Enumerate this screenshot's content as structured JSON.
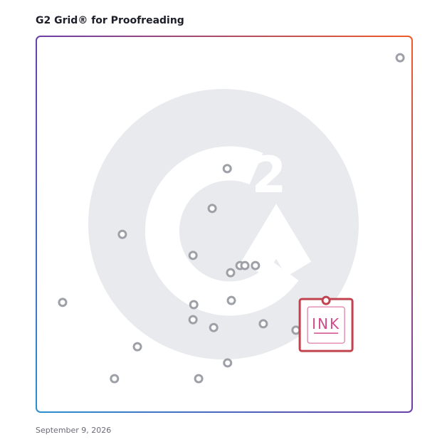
{
  "chart_data": {
    "type": "scatter",
    "title": "G2 Grid® for Proofreading",
    "date": "September 9, 2026",
    "xlim": [
      0,
      100
    ],
    "ylim": [
      0,
      100
    ],
    "x": [
      96.8,
      50.8,
      46.8,
      22.9,
      41.7,
      54.2,
      55.5,
      58.3,
      51.7,
      7.0,
      41.9,
      51.9,
      41.7,
      47.2,
      60.4,
      69.1,
      26.9,
      50.9,
      20.8,
      43.2
    ],
    "values": [
      94.3,
      64.8,
      54.2,
      47.3,
      41.7,
      39.0,
      39.0,
      39.0,
      37.1,
      29.2,
      28.6,
      29.7,
      24.6,
      22.5,
      23.5,
      21.8,
      17.4,
      13.1,
      8.9,
      8.9
    ],
    "color": "#9ea0a8",
    "highlight": {
      "label": "INK",
      "x": 77.1,
      "y": 29.7,
      "color": "#c0434f"
    }
  }
}
